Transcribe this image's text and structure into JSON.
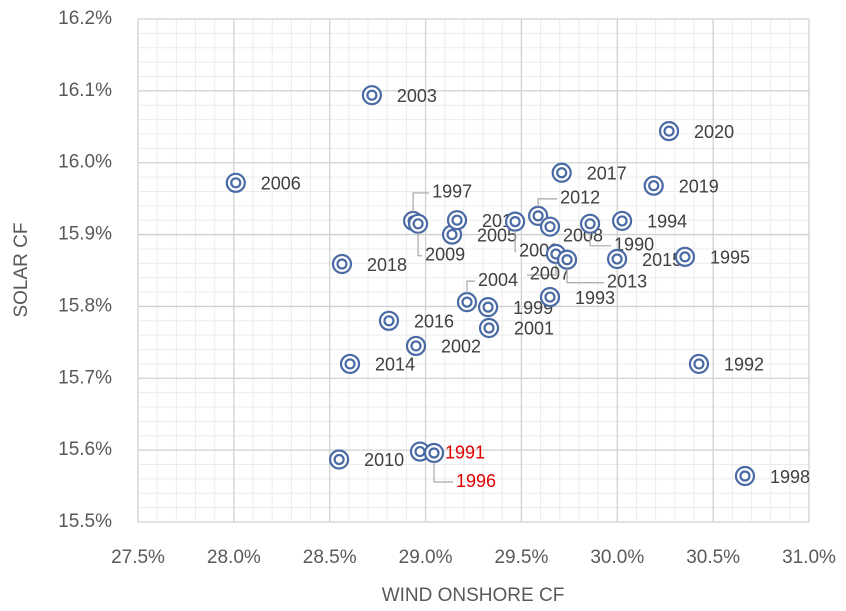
{
  "chart_data": {
    "type": "scatter",
    "x_label": "WIND ONSHORE CF",
    "y_label": "SOLAR  CF",
    "xlim": [
      27.5,
      31.0
    ],
    "ylim": [
      15.5,
      16.2
    ],
    "xticks": [
      {
        "value": 27.5,
        "label": "27.5%"
      },
      {
        "value": 28.0,
        "label": "28.0%"
      },
      {
        "value": 28.5,
        "label": "28.5%"
      },
      {
        "value": 29.0,
        "label": "29.0%"
      },
      {
        "value": 29.5,
        "label": "29.5%"
      },
      {
        "value": 30.0,
        "label": "30.0%"
      },
      {
        "value": 30.5,
        "label": "30.5%"
      },
      {
        "value": 31.0,
        "label": "31.0%"
      }
    ],
    "yticks": [
      {
        "value": 15.5,
        "label": "15.5%"
      },
      {
        "value": 15.6,
        "label": "15.6%"
      },
      {
        "value": 15.7,
        "label": "15.7%"
      },
      {
        "value": 15.8,
        "label": "15.8%"
      },
      {
        "value": 15.9,
        "label": "15.9%"
      },
      {
        "value": 16.0,
        "label": "16.0%"
      },
      {
        "value": 16.1,
        "label": "16.1%"
      },
      {
        "value": 16.2,
        "label": "16.2%"
      }
    ],
    "grid": true,
    "minor_grid": true,
    "color": "#4a6aa5",
    "labels": [
      "2003",
      "2020",
      "2006",
      "2017",
      "2019",
      "1997",
      "2009",
      "2005",
      "2011",
      "2000",
      "2012",
      "2008",
      "1990",
      "1994",
      "2007",
      "2013",
      "2015",
      "1995",
      "2018",
      "2004",
      "1999",
      "1993",
      "2016",
      "2001",
      "2002",
      "2014",
      "1992",
      "1991",
      "1996",
      "2010",
      "1998"
    ],
    "label_colors": [
      "#404040",
      "#404040",
      "#404040",
      "#404040",
      "#404040",
      "#404040",
      "#404040",
      "#404040",
      "#404040",
      "#404040",
      "#404040",
      "#404040",
      "#404040",
      "#404040",
      "#404040",
      "#404040",
      "#404040",
      "#404040",
      "#404040",
      "#404040",
      "#404040",
      "#404040",
      "#404040",
      "#404040",
      "#404040",
      "#404040",
      "#404040",
      "#e00000",
      "#e00000",
      "#404040",
      "#404040"
    ],
    "x": [
      28.72,
      30.27,
      28.01,
      29.71,
      30.19,
      28.935,
      28.961,
      29.138,
      29.164,
      29.467,
      29.587,
      29.649,
      29.858,
      30.025,
      29.68,
      29.738,
      29.999,
      30.353,
      28.564,
      29.216,
      29.326,
      29.649,
      28.809,
      29.331,
      28.95,
      28.606,
      30.426,
      28.971,
      29.044,
      28.549,
      30.666
    ],
    "values": [
      16.094,
      16.044,
      15.972,
      15.986,
      15.968,
      15.919,
      15.915,
      15.9,
      15.92,
      15.918,
      15.926,
      15.911,
      15.915,
      15.919,
      15.873,
      15.865,
      15.866,
      15.869,
      15.859,
      15.806,
      15.799,
      15.813,
      15.78,
      15.77,
      15.745,
      15.72,
      15.72,
      15.598,
      15.596,
      15.587,
      15.564
    ]
  }
}
